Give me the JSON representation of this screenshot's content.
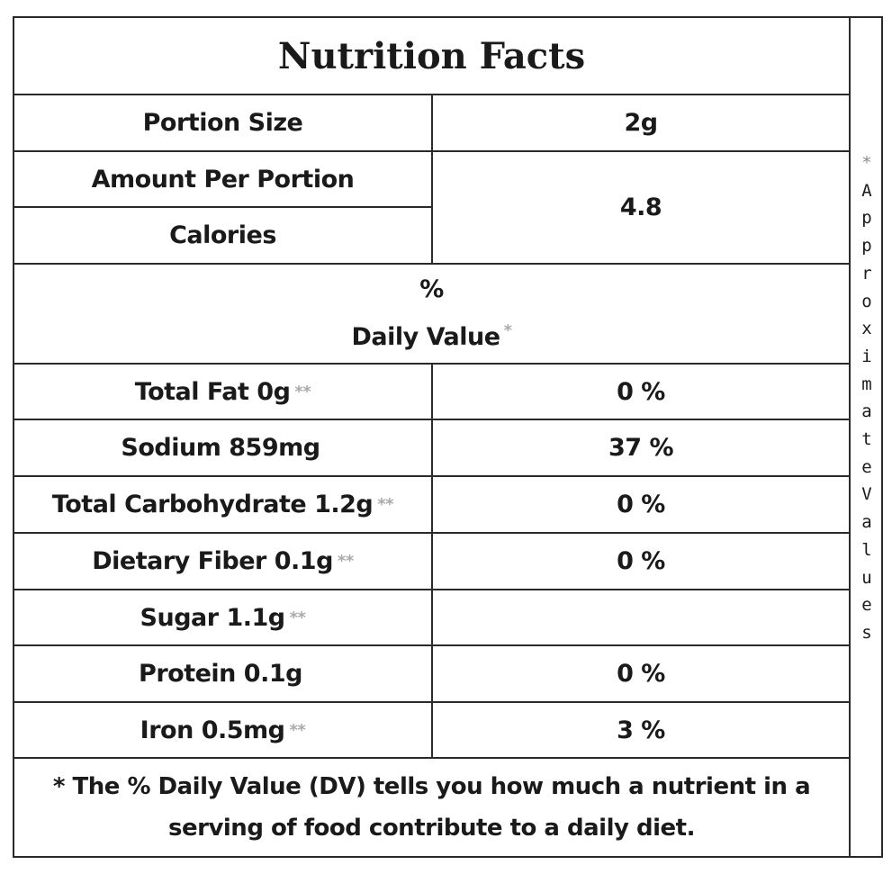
{
  "title": "Nutrition Facts",
  "portion": {
    "label": "Portion Size",
    "value": "2g"
  },
  "amount_label": "Amount Per Portion",
  "calories": {
    "label": "Calories",
    "value": "4.8"
  },
  "daily_value": {
    "percent": "%",
    "label": "Daily Value",
    "star": "*"
  },
  "nutrients": [
    {
      "label": "Total Fat 0g",
      "stars": "**",
      "value": "0 %"
    },
    {
      "label": "Sodium 859mg",
      "stars": "",
      "value": "37 %"
    },
    {
      "label": "Total Carbohydrate 1.2g",
      "stars": "**",
      "value": "0 %"
    },
    {
      "label": "Dietary Fiber 0.1g",
      "stars": "**",
      "value": "0 %"
    },
    {
      "label": "Sugar 1.1g",
      "stars": "**",
      "value": ""
    },
    {
      "label": "Protein 0.1g",
      "stars": "",
      "value": "0 %"
    },
    {
      "label": "Iron 0.5mg",
      "stars": "**",
      "value": "3 %"
    }
  ],
  "footnote": {
    "line1": "* The % Daily Value (DV) tells you how much a nutrient in a",
    "line2": "serving of food contribute to a daily diet."
  },
  "side_note": {
    "star": "*",
    "letters": [
      "A",
      "p",
      "p",
      "r",
      "o",
      "x",
      "i",
      "m",
      "a",
      "t",
      "e",
      "V",
      "a",
      "l",
      "u",
      "e",
      "s"
    ]
  }
}
